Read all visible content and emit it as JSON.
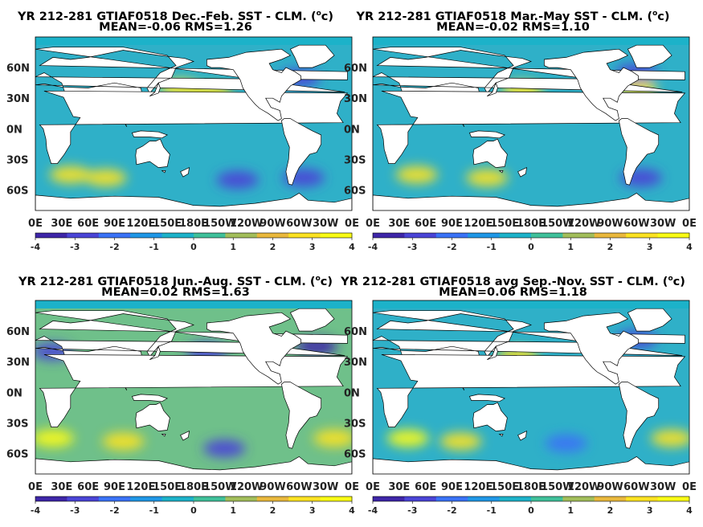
{
  "colorbar": {
    "ticks": [
      "-4",
      "-3",
      "-2",
      "-1",
      "0",
      "1",
      "2",
      "3",
      "4"
    ],
    "colors": [
      "#3e26a8",
      "#4a44d6",
      "#3a72f6",
      "#1f97e6",
      "#1cb2c9",
      "#3fc09a",
      "#a2be5a",
      "#e9b83c",
      "#fbe222",
      "#f9fb15"
    ]
  },
  "chart_data": [
    {
      "type": "heatmap",
      "title": "YR 212-281 GTIAF0518  Dec.-Feb. SST - CLM. (",
      "title_sup": "o",
      "title_end": "c)",
      "subtitle": "MEAN=-0.06   RMS=1.26",
      "x_tick_labels": [
        "0E",
        "30E",
        "60E",
        "90E",
        "120E",
        "150E",
        "180E",
        "150W",
        "120W",
        "90W",
        "60W",
        "30W",
        "0E"
      ],
      "y_tick_labels": [
        "60N",
        "30N",
        "0N",
        "30S",
        "60S"
      ],
      "colorbar_range": [
        -4,
        4
      ],
      "mean": -0.06,
      "rms": 1.26,
      "anomalies": [
        {
          "lon": 165,
          "lat": 40,
          "value": 3.0
        },
        {
          "lon": 200,
          "lat": 35,
          "value": 2.5
        },
        {
          "lon": 40,
          "lat": -45,
          "value": 3.0
        },
        {
          "lon": 80,
          "lat": -48,
          "value": 2.8
        },
        {
          "lon": 230,
          "lat": -50,
          "value": -2.8
        },
        {
          "lon": 305,
          "lat": -48,
          "value": -3.0
        },
        {
          "lon": 300,
          "lat": 50,
          "value": -2.5
        }
      ]
    },
    {
      "type": "heatmap",
      "title": "YR 212-281 GTIAF0518 Mar.-May SST - CLM. (",
      "title_sup": "o",
      "title_end": "c)",
      "subtitle": "MEAN=-0.02   RMS=1.10",
      "x_tick_labels": [
        "0E",
        "30E",
        "60E",
        "90E",
        "120E",
        "150E",
        "180E",
        "150W",
        "120W",
        "90W",
        "60W",
        "30W",
        "0E"
      ],
      "y_tick_labels": [
        "60N",
        "30N",
        "0N",
        "30S",
        "60S"
      ],
      "colorbar_range": [
        -4,
        4
      ],
      "mean": -0.02,
      "rms": 1.1,
      "anomalies": [
        {
          "lon": 170,
          "lat": 38,
          "value": 2.6
        },
        {
          "lon": 300,
          "lat": 40,
          "value": 3.0
        },
        {
          "lon": 50,
          "lat": -45,
          "value": 2.6
        },
        {
          "lon": 130,
          "lat": -48,
          "value": 2.5
        },
        {
          "lon": 305,
          "lat": -48,
          "value": -2.8
        },
        {
          "lon": 300,
          "lat": 55,
          "value": -2.6
        }
      ]
    },
    {
      "type": "heatmap",
      "title": "YR 212-281 GTIAF0518 Jun.-Aug. SST - CLM. (",
      "title_sup": "o",
      "title_end": "c)",
      "subtitle": "MEAN=0.02   RMS=1.63",
      "x_tick_labels": [
        "0E",
        "30E",
        "60E",
        "90E",
        "120E",
        "150E",
        "180E",
        "150W",
        "120W",
        "90W",
        "60W",
        "30W",
        "0E"
      ],
      "y_tick_labels": [
        "60N",
        "30N",
        "0N",
        "30S",
        "60S"
      ],
      "colorbar_range": [
        -4,
        4
      ],
      "mean": 0.02,
      "rms": 1.63,
      "anomalies": [
        {
          "lon": 195,
          "lat": 40,
          "value": -3.0
        },
        {
          "lon": 320,
          "lat": 45,
          "value": -3.2
        },
        {
          "lon": 20,
          "lat": 40,
          "value": -2.5
        },
        {
          "lon": 20,
          "lat": -45,
          "value": 3.2
        },
        {
          "lon": 100,
          "lat": -48,
          "value": 2.6
        },
        {
          "lon": 340,
          "lat": -45,
          "value": 3.0
        },
        {
          "lon": 215,
          "lat": -55,
          "value": -2.6
        }
      ]
    },
    {
      "type": "heatmap",
      "title": "YR 212-281 GTIAF0518 avg Sep.-Nov. SST - CLM. (",
      "title_sup": "o",
      "title_end": "c)",
      "subtitle": "MEAN=0.06   RMS=1.18",
      "x_tick_labels": [
        "0E",
        "30E",
        "60E",
        "90E",
        "120E",
        "150E",
        "180E",
        "150W",
        "120W",
        "90W",
        "60W",
        "30W",
        "0E"
      ],
      "y_tick_labels": [
        "60N",
        "30N",
        "0N",
        "30S",
        "60S"
      ],
      "colorbar_range": [
        -4,
        4
      ],
      "mean": 0.06,
      "rms": 1.18,
      "anomalies": [
        {
          "lon": 165,
          "lat": 35,
          "value": 2.4
        },
        {
          "lon": 40,
          "lat": -45,
          "value": 3.2
        },
        {
          "lon": 100,
          "lat": -48,
          "value": 2.6
        },
        {
          "lon": 340,
          "lat": -45,
          "value": 2.8
        },
        {
          "lon": 300,
          "lat": 52,
          "value": -2.8
        },
        {
          "lon": 220,
          "lat": -50,
          "value": -2.0
        }
      ]
    }
  ]
}
